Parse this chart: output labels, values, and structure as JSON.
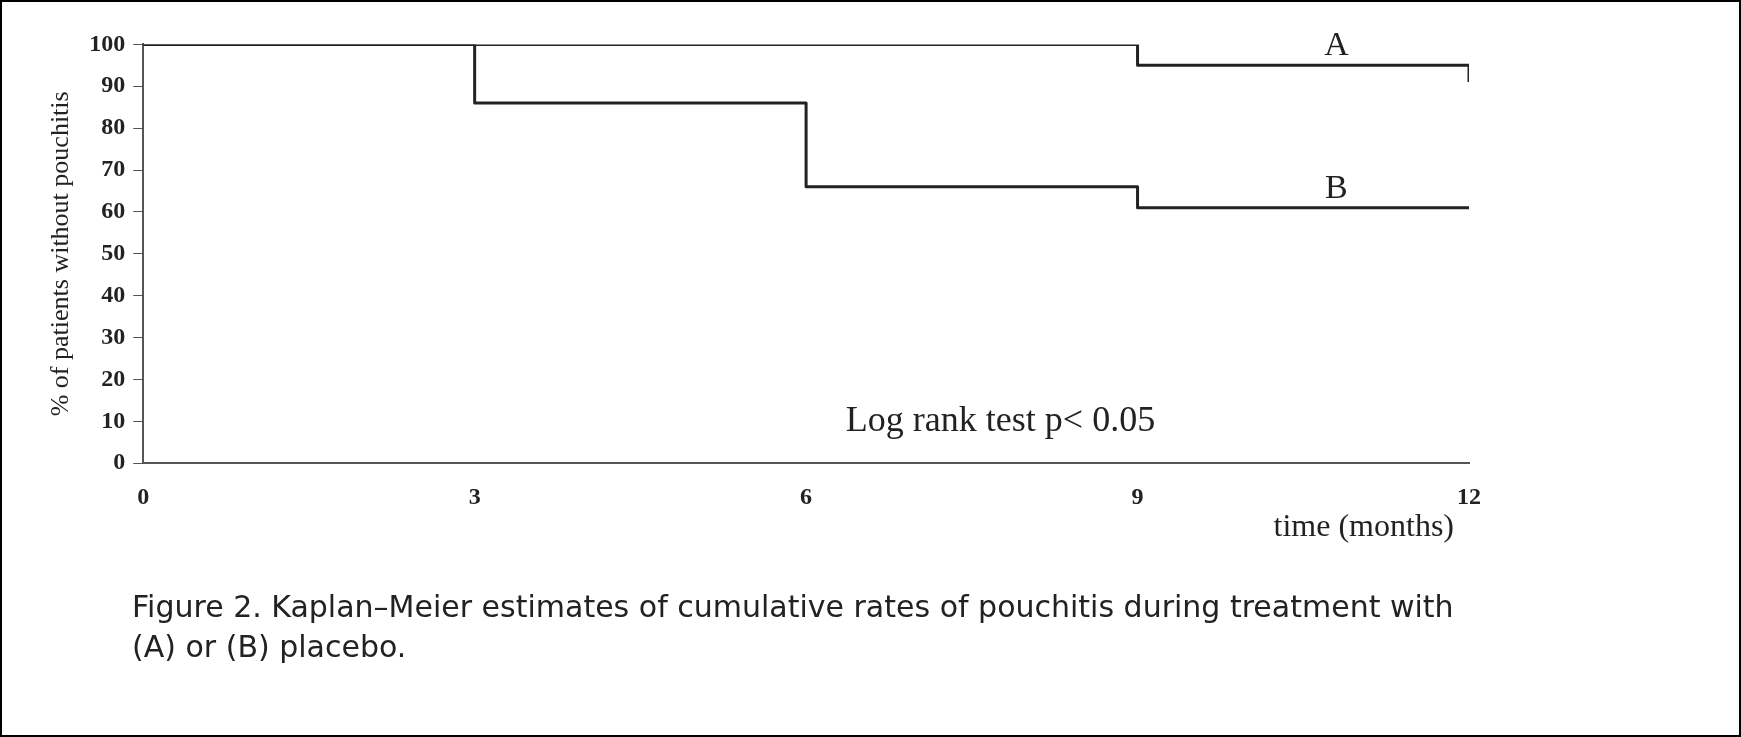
{
  "chart_data": {
    "type": "step",
    "xlabel": "time (months)",
    "ylabel": "% of patients without pouchitis",
    "xlim": [
      0,
      12
    ],
    "xticks": [
      0,
      3,
      6,
      9,
      12
    ],
    "ylim": [
      0,
      100
    ],
    "yticks": [
      0,
      10,
      20,
      30,
      40,
      50,
      60,
      70,
      80,
      90,
      100
    ],
    "grid": false,
    "legend": false,
    "marker": "none",
    "line_style": "solid",
    "series": [
      {
        "name": "A",
        "color": "#222222",
        "x": [
          0,
          9,
          12,
          12
        ],
        "values": [
          100,
          95,
          95,
          91
        ]
      },
      {
        "name": "B",
        "color": "#222222",
        "x": [
          0,
          3,
          6,
          9,
          12
        ],
        "values": [
          100,
          86,
          66,
          61,
          61
        ]
      }
    ],
    "annotations": [
      "Log rank test p< 0.05",
      "Figure 2.  Kaplan–Meier estimates of cumulative rates of pouchitis during treatment with (A) or (B) placebo."
    ]
  }
}
